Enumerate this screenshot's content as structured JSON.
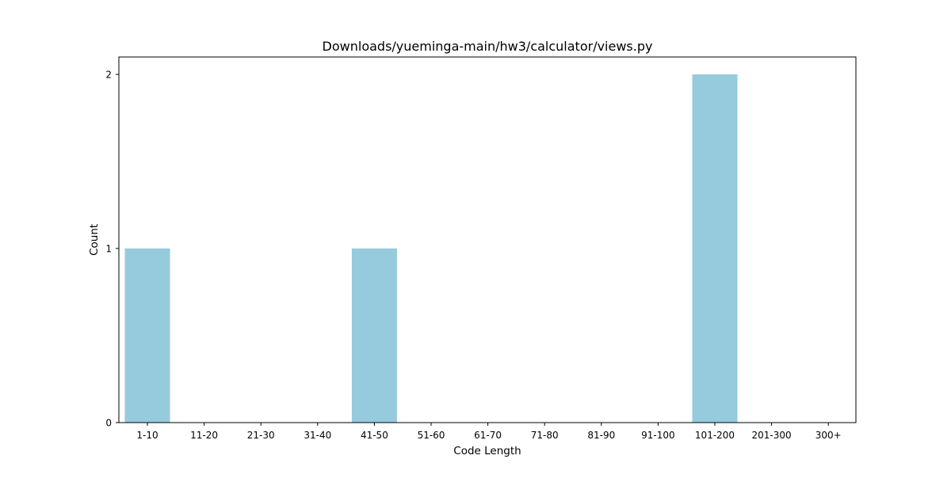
{
  "chart_data": {
    "type": "bar",
    "title": "Downloads/yueminga-main/hw3/calculator/views.py",
    "xlabel": "Code Length",
    "ylabel": "Count",
    "categories": [
      "1-10",
      "11-20",
      "21-30",
      "31-40",
      "41-50",
      "51-60",
      "61-70",
      "71-80",
      "81-90",
      "91-100",
      "101-200",
      "201-300",
      "300+"
    ],
    "values": [
      1,
      0,
      0,
      0,
      1,
      0,
      0,
      0,
      0,
      0,
      2,
      0,
      0
    ],
    "yticks": [
      0,
      1,
      2
    ],
    "ylim": [
      0,
      2.1
    ],
    "grid": false,
    "bar_color": "#96cadd"
  }
}
